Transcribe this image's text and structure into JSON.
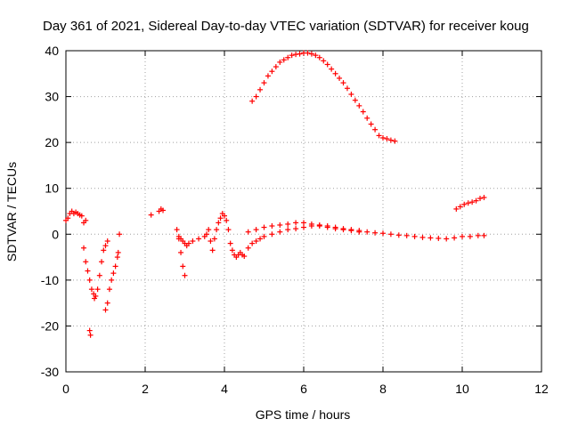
{
  "chart_data": {
    "type": "scatter",
    "title": "Day 361 of 2021, Sidereal Day-to-day VTEC variation (SDTVAR) for receiver koug",
    "xlabel": "GPS time / hours",
    "ylabel": "SDTVAR / TECUs",
    "xlim": [
      0,
      12
    ],
    "ylim": [
      -30,
      40
    ],
    "xticks": [
      "0",
      "2",
      "4",
      "6",
      "8",
      "10",
      "12"
    ],
    "yticks": [
      "-30",
      "-20",
      "-10",
      "0",
      "10",
      "20",
      "30",
      "40"
    ],
    "grid": true,
    "marker": "+",
    "color": "#ff0000",
    "series": [
      {
        "name": "SDTVAR",
        "x": [
          0.0,
          0.05,
          0.1,
          0.15,
          0.2,
          0.25,
          0.3,
          0.35,
          0.4,
          0.45,
          0.5,
          0.45,
          0.5,
          0.55,
          0.6,
          0.65,
          0.7,
          0.72,
          0.75,
          0.8,
          0.85,
          0.9,
          0.95,
          1.0,
          1.05,
          1.0,
          1.05,
          1.1,
          1.15,
          1.2,
          1.25,
          1.3,
          1.32,
          1.35,
          0.6,
          0.62,
          2.15,
          2.35,
          2.4,
          2.45,
          2.8,
          2.85,
          2.9,
          2.95,
          3.0,
          2.85,
          2.9,
          2.95,
          3.0,
          3.05,
          3.1,
          3.2,
          3.35,
          3.5,
          3.55,
          3.6,
          3.65,
          3.7,
          3.75,
          3.8,
          3.85,
          3.9,
          3.95,
          4.0,
          4.05,
          4.1,
          4.15,
          4.2,
          4.25,
          4.3,
          4.35,
          4.4,
          4.45,
          4.5,
          4.6,
          4.7,
          4.8,
          4.9,
          5.0,
          5.2,
          5.4,
          5.6,
          5.8,
          6.0,
          6.2,
          6.4,
          6.6,
          6.8,
          7.0,
          7.2,
          7.4,
          7.6,
          7.8,
          8.0,
          8.2,
          8.4,
          8.6,
          8.8,
          9.0,
          9.2,
          9.4,
          9.6,
          9.8,
          10.0,
          10.2,
          10.4,
          10.55,
          4.6,
          4.8,
          5.0,
          5.2,
          5.4,
          5.6,
          5.8,
          6.0,
          6.2,
          6.4,
          6.6,
          6.8,
          7.0,
          7.2,
          7.4,
          4.7,
          4.8,
          4.9,
          5.0,
          5.1,
          5.2,
          5.3,
          5.4,
          5.5,
          5.6,
          5.7,
          5.8,
          5.9,
          6.0,
          6.1,
          6.2,
          6.3,
          6.4,
          6.5,
          6.6,
          6.7,
          6.8,
          6.9,
          7.0,
          7.1,
          7.2,
          7.3,
          7.4,
          7.5,
          7.6,
          7.7,
          7.8,
          7.9,
          8.0,
          8.1,
          8.2,
          8.3,
          9.85,
          9.95,
          10.05,
          10.15,
          10.25,
          10.35,
          10.45,
          10.55
        ],
        "y": [
          3,
          3.5,
          4.5,
          5,
          4.5,
          4.8,
          4.5,
          4.2,
          4,
          2.5,
          3,
          -3,
          -6,
          -8,
          -10,
          -12,
          -13,
          -14,
          -13.5,
          -12,
          -9,
          -6,
          -3.5,
          -2.5,
          -1.5,
          -16.5,
          -15,
          -12,
          -10,
          -8.5,
          -7,
          -5,
          -4,
          0,
          -21,
          -22,
          4.2,
          5,
          5.5,
          5.2,
          1,
          -1,
          -4,
          -7,
          -9,
          -0.5,
          -1,
          -1.5,
          -2,
          -2.5,
          -2,
          -1.5,
          -1,
          -0.5,
          0,
          1,
          -1.5,
          -3.5,
          -1,
          1,
          2.5,
          3.5,
          4.5,
          4,
          3,
          1,
          -2,
          -3.5,
          -4.5,
          -5,
          -4.5,
          -4,
          -4.5,
          -4.8,
          -3,
          -2,
          -1.5,
          -1,
          -0.5,
          0,
          0.5,
          1,
          1.2,
          1.5,
          1.8,
          1.8,
          1.5,
          1.2,
          1,
          0.8,
          0.5,
          0.5,
          0.3,
          0.2,
          0,
          -0.2,
          -0.3,
          -0.5,
          -0.7,
          -0.8,
          -0.9,
          -1,
          -0.8,
          -0.5,
          -0.5,
          -0.3,
          -0.3,
          0.5,
          1,
          1.5,
          1.8,
          2,
          2.2,
          2.5,
          2.5,
          2.2,
          2,
          1.8,
          1.5,
          1.2,
          1,
          0.8,
          29,
          30,
          31.5,
          33,
          34.5,
          35.5,
          36.5,
          37.5,
          38,
          38.5,
          39,
          39.2,
          39.3,
          39.5,
          39.5,
          39.3,
          39,
          38.5,
          37.8,
          37,
          36,
          35,
          34,
          33,
          31.8,
          30.5,
          29.2,
          28,
          26.7,
          25.3,
          24,
          22.8,
          21.5,
          21,
          20.8,
          20.5,
          20.3,
          5.5,
          6,
          6.5,
          6.8,
          7,
          7.3,
          7.8,
          8
        ]
      }
    ]
  }
}
